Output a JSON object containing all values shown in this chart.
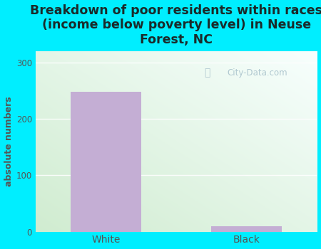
{
  "categories": [
    "White",
    "Black"
  ],
  "values": [
    248,
    10
  ],
  "bar_colors": [
    "#c4aed4",
    "#c4aed4"
  ],
  "title": "Breakdown of poor residents within races\n(income below poverty level) in Neuse\nForest, NC",
  "ylabel": "absolute numbers",
  "ylim": [
    0,
    320
  ],
  "yticks": [
    0,
    100,
    200,
    300
  ],
  "background_outer": "#00eeff",
  "grid_color": "#ffffff",
  "title_color": "#1a2a2a",
  "axis_label_color": "#555555",
  "tick_label_color": "#555555",
  "title_fontsize": 12.5,
  "ylabel_fontsize": 9,
  "watermark_text": "City-Data.com",
  "watermark_color": "#b0c8d0"
}
